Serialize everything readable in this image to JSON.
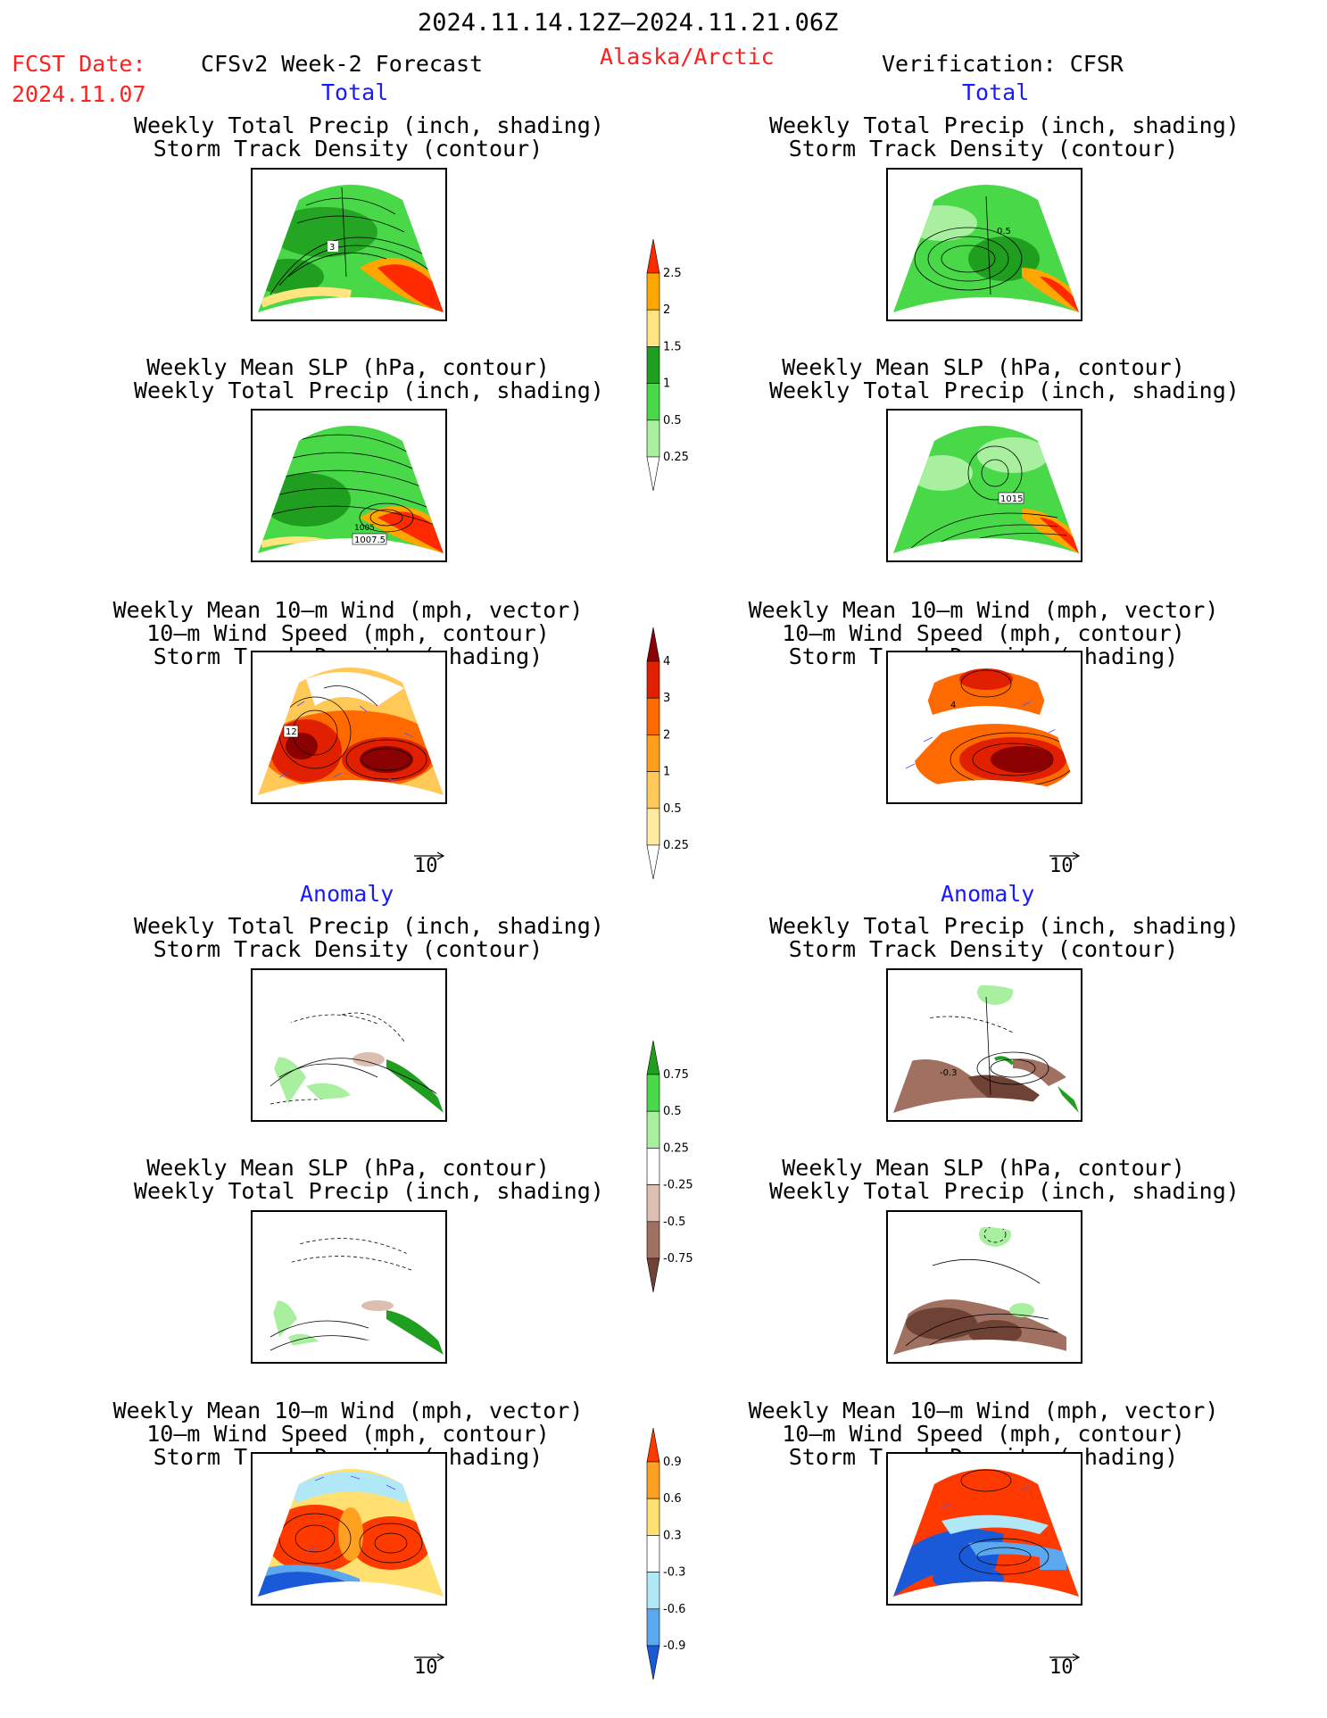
{
  "header": {
    "date_range": "2024.11.14.12Z–2024.11.21.06Z",
    "fcst_date_label": "FCST Date:",
    "fcst_date_value": "2024.11.07",
    "forecast_label": "CFSv2 Week-2 Forecast",
    "region": "Alaska/Arctic",
    "verification_label": "Verification: CFSR"
  },
  "sections": {
    "total_left": "Total",
    "total_right": "Total",
    "anomaly_left": "Anomaly",
    "anomaly_right": "Anomaly"
  },
  "panel_titles": {
    "precip_storm": [
      "Weekly Total Precip (inch, shading)",
      "Storm Track Density (contour)"
    ],
    "slp_precip": [
      "Weekly Mean SLP (hPa, contour)",
      "Weekly Total Precip (inch, shading)"
    ],
    "wind_storm": [
      "Weekly Mean 10–m Wind (mph, vector)",
      "10–m Wind Speed (mph, contour)",
      "Storm Track Density (shading)"
    ]
  },
  "panel_labels": {
    "fc_precip_contour": "3",
    "fc_slp_contour_a": "1005",
    "fc_slp_contour_b": "1007.5",
    "fc_wind_contour": "12",
    "ob_precip_contour": "0.5",
    "ob_slp_contour": "1015",
    "ob_wind_contour": "4",
    "ob_anom_precip_contour": "-0.3"
  },
  "vector_reference": "10",
  "colorbars": {
    "precip_total": {
      "labels": [
        "2.5",
        "2",
        "1.5",
        "1",
        "0.5",
        "0.25"
      ],
      "colors": [
        "#ff2a00",
        "#ffa600",
        "#ffe480",
        "#1f9e1f",
        "#48d848",
        "#a8f0a0",
        "#ffffff"
      ]
    },
    "storm_total": {
      "labels": [
        "4",
        "3",
        "2",
        "1",
        "0.5",
        "0.25"
      ],
      "colors": [
        "#8b0000",
        "#e02000",
        "#ff6a00",
        "#ff9f1c",
        "#ffc857",
        "#ffeaa0",
        "#ffffff"
      ]
    },
    "precip_anom": {
      "labels": [
        "0.75",
        "0.5",
        "0.25",
        "-0.25",
        "-0.5",
        "-0.75"
      ],
      "colors": [
        "#1f9e1f",
        "#48d848",
        "#a8f0a0",
        "#ffffff",
        "#dcbfb0",
        "#a07060",
        "#6e4234"
      ]
    },
    "storm_anom": {
      "labels": [
        "0.9",
        "0.6",
        "0.3",
        "-0.3",
        "-0.6",
        "-0.9"
      ],
      "colors": [
        "#ff3a00",
        "#ffa020",
        "#ffe070",
        "#ffffff",
        "#b0e8f8",
        "#5aa8f0",
        "#1a5ad8"
      ]
    }
  }
}
